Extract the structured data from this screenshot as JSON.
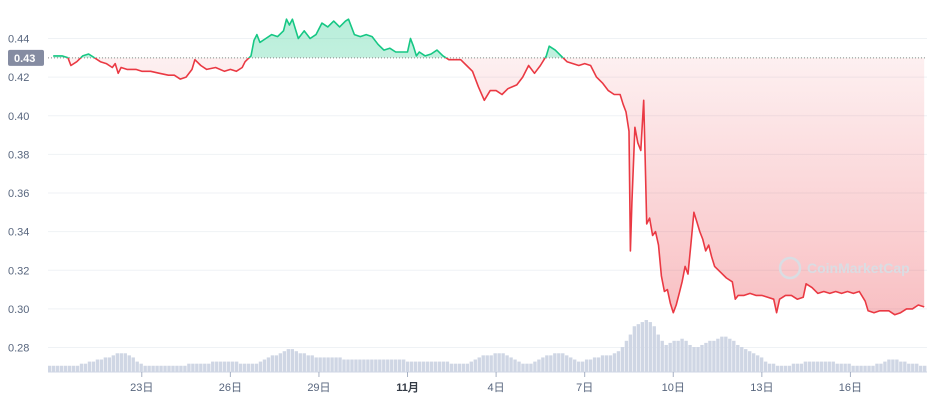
{
  "chart_data": {
    "type": "area",
    "title": "",
    "xlabel": "",
    "ylabel": "",
    "ylim": [
      0.27,
      0.455
    ],
    "y_ticks": [
      "0.28",
      "0.30",
      "0.32",
      "0.34",
      "0.36",
      "0.38",
      "0.40",
      "0.42",
      "0.44"
    ],
    "x_ticks": [
      {
        "label": "23日",
        "x": 23
      },
      {
        "label": "26日",
        "x": 26
      },
      {
        "label": "29日",
        "x": 29
      },
      {
        "label": "11月",
        "x": 32,
        "bold": true
      },
      {
        "label": "4日",
        "x": 35
      },
      {
        "label": "7日",
        "x": 38
      },
      {
        "label": "10日",
        "x": 41
      },
      {
        "label": "13日",
        "x": 44
      },
      {
        "label": "16日",
        "x": 47
      }
    ],
    "xlim": [
      20.0,
      50.0
    ],
    "baseline": 0.43,
    "current_price_label": "0.43",
    "colors": {
      "above": "#16c784",
      "below": "#ea3943",
      "baseline_badge": "#858ca2",
      "volume": "#cfd6e4"
    },
    "watermark": "CoinMarketCap",
    "series": [
      {
        "values": [
          [
            20.0,
            0.431
          ],
          [
            20.3,
            0.431
          ],
          [
            20.5,
            0.43
          ],
          [
            20.6,
            0.426
          ],
          [
            20.8,
            0.428
          ],
          [
            21.0,
            0.431
          ],
          [
            21.2,
            0.432
          ],
          [
            21.4,
            0.43
          ],
          [
            21.6,
            0.428
          ],
          [
            21.8,
            0.427
          ],
          [
            22.0,
            0.425
          ],
          [
            22.1,
            0.427
          ],
          [
            22.2,
            0.422
          ],
          [
            22.3,
            0.425
          ],
          [
            22.5,
            0.424
          ],
          [
            22.8,
            0.424
          ],
          [
            23.0,
            0.423
          ],
          [
            23.3,
            0.423
          ],
          [
            23.6,
            0.422
          ],
          [
            23.9,
            0.421
          ],
          [
            24.1,
            0.421
          ],
          [
            24.3,
            0.419
          ],
          [
            24.5,
            0.42
          ],
          [
            24.7,
            0.424
          ],
          [
            24.8,
            0.429
          ],
          [
            25.0,
            0.426
          ],
          [
            25.2,
            0.424
          ],
          [
            25.5,
            0.425
          ],
          [
            25.8,
            0.423
          ],
          [
            26.0,
            0.424
          ],
          [
            26.2,
            0.423
          ],
          [
            26.4,
            0.425
          ],
          [
            26.5,
            0.428
          ],
          [
            26.7,
            0.431
          ],
          [
            26.8,
            0.439
          ],
          [
            26.9,
            0.442
          ],
          [
            27.0,
            0.438
          ],
          [
            27.2,
            0.44
          ],
          [
            27.4,
            0.442
          ],
          [
            27.6,
            0.441
          ],
          [
            27.8,
            0.444
          ],
          [
            27.9,
            0.45
          ],
          [
            28.0,
            0.447
          ],
          [
            28.1,
            0.45
          ],
          [
            28.3,
            0.44
          ],
          [
            28.5,
            0.444
          ],
          [
            28.7,
            0.44
          ],
          [
            28.9,
            0.442
          ],
          [
            29.1,
            0.448
          ],
          [
            29.3,
            0.446
          ],
          [
            29.5,
            0.449
          ],
          [
            29.7,
            0.446
          ],
          [
            29.9,
            0.449
          ],
          [
            30.0,
            0.45
          ],
          [
            30.2,
            0.442
          ],
          [
            30.4,
            0.441
          ],
          [
            30.6,
            0.442
          ],
          [
            30.8,
            0.441
          ],
          [
            31.0,
            0.437
          ],
          [
            31.2,
            0.434
          ],
          [
            31.4,
            0.435
          ],
          [
            31.6,
            0.433
          ],
          [
            31.8,
            0.433
          ],
          [
            32.0,
            0.433
          ],
          [
            32.1,
            0.44
          ],
          [
            32.2,
            0.436
          ],
          [
            32.3,
            0.431
          ],
          [
            32.4,
            0.433
          ],
          [
            32.6,
            0.431
          ],
          [
            32.8,
            0.432
          ],
          [
            33.0,
            0.434
          ],
          [
            33.2,
            0.431
          ],
          [
            33.4,
            0.429
          ],
          [
            33.6,
            0.429
          ],
          [
            33.8,
            0.429
          ],
          [
            34.0,
            0.426
          ],
          [
            34.2,
            0.423
          ],
          [
            34.4,
            0.415
          ],
          [
            34.6,
            0.408
          ],
          [
            34.8,
            0.413
          ],
          [
            35.0,
            0.413
          ],
          [
            35.2,
            0.411
          ],
          [
            35.4,
            0.414
          ],
          [
            35.7,
            0.416
          ],
          [
            35.9,
            0.42
          ],
          [
            36.1,
            0.426
          ],
          [
            36.3,
            0.422
          ],
          [
            36.5,
            0.426
          ],
          [
            36.7,
            0.431
          ],
          [
            36.8,
            0.436
          ],
          [
            37.0,
            0.434
          ],
          [
            37.2,
            0.431
          ],
          [
            37.4,
            0.428
          ],
          [
            37.6,
            0.427
          ],
          [
            37.8,
            0.426
          ],
          [
            38.0,
            0.427
          ],
          [
            38.2,
            0.426
          ],
          [
            38.4,
            0.42
          ],
          [
            38.6,
            0.417
          ],
          [
            38.8,
            0.413
          ],
          [
            39.0,
            0.411
          ],
          [
            39.2,
            0.411
          ],
          [
            39.3,
            0.406
          ],
          [
            39.4,
            0.402
          ],
          [
            39.5,
            0.392
          ],
          [
            39.55,
            0.33
          ],
          [
            39.6,
            0.355
          ],
          [
            39.7,
            0.394
          ],
          [
            39.8,
            0.386
          ],
          [
            39.9,
            0.382
          ],
          [
            40.0,
            0.408
          ],
          [
            40.05,
            0.377
          ],
          [
            40.1,
            0.344
          ],
          [
            40.2,
            0.347
          ],
          [
            40.3,
            0.338
          ],
          [
            40.4,
            0.34
          ],
          [
            40.5,
            0.333
          ],
          [
            40.6,
            0.317
          ],
          [
            40.7,
            0.309
          ],
          [
            40.8,
            0.31
          ],
          [
            40.9,
            0.303
          ],
          [
            41.0,
            0.298
          ],
          [
            41.1,
            0.302
          ],
          [
            41.2,
            0.308
          ],
          [
            41.3,
            0.314
          ],
          [
            41.4,
            0.322
          ],
          [
            41.5,
            0.318
          ],
          [
            41.6,
            0.334
          ],
          [
            41.7,
            0.35
          ],
          [
            41.8,
            0.345
          ],
          [
            41.9,
            0.34
          ],
          [
            42.0,
            0.336
          ],
          [
            42.1,
            0.33
          ],
          [
            42.2,
            0.333
          ],
          [
            42.3,
            0.327
          ],
          [
            42.4,
            0.322
          ],
          [
            42.6,
            0.319
          ],
          [
            42.8,
            0.316
          ],
          [
            43.0,
            0.314
          ],
          [
            43.1,
            0.305
          ],
          [
            43.2,
            0.307
          ],
          [
            43.4,
            0.307
          ],
          [
            43.6,
            0.308
          ],
          [
            43.8,
            0.307
          ],
          [
            44.0,
            0.307
          ],
          [
            44.2,
            0.306
          ],
          [
            44.4,
            0.305
          ],
          [
            44.5,
            0.298
          ],
          [
            44.6,
            0.305
          ],
          [
            44.8,
            0.307
          ],
          [
            45.0,
            0.307
          ],
          [
            45.2,
            0.305
          ],
          [
            45.4,
            0.306
          ],
          [
            45.5,
            0.313
          ],
          [
            45.7,
            0.311
          ],
          [
            45.9,
            0.308
          ],
          [
            46.1,
            0.309
          ],
          [
            46.3,
            0.308
          ],
          [
            46.5,
            0.309
          ],
          [
            46.7,
            0.308
          ],
          [
            46.9,
            0.309
          ],
          [
            47.1,
            0.308
          ],
          [
            47.3,
            0.309
          ],
          [
            47.5,
            0.304
          ],
          [
            47.6,
            0.299
          ],
          [
            47.8,
            0.298
          ],
          [
            48.0,
            0.299
          ],
          [
            48.3,
            0.299
          ],
          [
            48.5,
            0.297
          ],
          [
            48.7,
            0.298
          ],
          [
            48.9,
            0.3
          ],
          [
            49.1,
            0.3
          ],
          [
            49.3,
            0.302
          ],
          [
            49.5,
            0.301
          ],
          [
            49.7,
            0.303
          ],
          [
            50.0,
            0.302
          ]
        ]
      }
    ],
    "volume": [
      3,
      3,
      3,
      3,
      3,
      3,
      3,
      3,
      4,
      4,
      5,
      5,
      6,
      6,
      7,
      7,
      8,
      9,
      9,
      9,
      8,
      7,
      5,
      4,
      3,
      3,
      3,
      3,
      3,
      3,
      3,
      3,
      3,
      3,
      3,
      4,
      4,
      4,
      4,
      4,
      4,
      5,
      5,
      5,
      5,
      5,
      5,
      5,
      4,
      4,
      4,
      4,
      4,
      5,
      6,
      7,
      8,
      8,
      9,
      10,
      11,
      11,
      10,
      9,
      9,
      8,
      8,
      7,
      7,
      7,
      7,
      7,
      7,
      7,
      6,
      6,
      6,
      6,
      6,
      6,
      6,
      6,
      6,
      6,
      6,
      6,
      6,
      6,
      6,
      6,
      5,
      5,
      5,
      5,
      5,
      5,
      5,
      5,
      5,
      5,
      5,
      4,
      4,
      4,
      4,
      4,
      5,
      6,
      7,
      8,
      8,
      8,
      9,
      9,
      9,
      8,
      7,
      6,
      5,
      4,
      4,
      4,
      5,
      6,
      7,
      8,
      8,
      9,
      9,
      9,
      8,
      7,
      6,
      5,
      5,
      6,
      6,
      7,
      7,
      8,
      8,
      8,
      9,
      10,
      12,
      15,
      18,
      22,
      23,
      24,
      25,
      24,
      22,
      18,
      15,
      13,
      14,
      15,
      15,
      16,
      15,
      13,
      12,
      12,
      13,
      14,
      15,
      15,
      16,
      17,
      17,
      16,
      15,
      13,
      12,
      11,
      10,
      9,
      8,
      7,
      5,
      4,
      4,
      3,
      3,
      3,
      3,
      4,
      4,
      4,
      5,
      5,
      5,
      5,
      5,
      5,
      5,
      5,
      4,
      4,
      4,
      4,
      3,
      3,
      3,
      3,
      3,
      3,
      4,
      4,
      5,
      6,
      6,
      6,
      5,
      5,
      4,
      4,
      4,
      3,
      3
    ]
  }
}
